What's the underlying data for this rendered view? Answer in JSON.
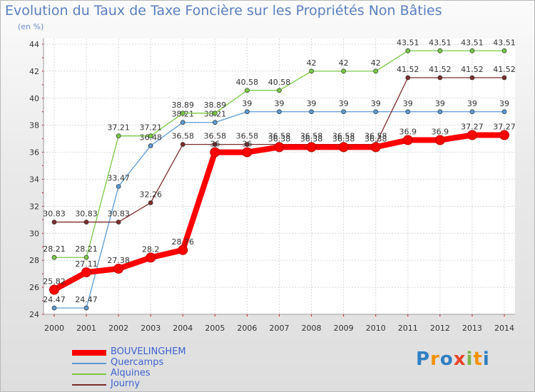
{
  "chart_data": {
    "type": "line",
    "title": "Evolution du Taux de Taxe Foncière sur les Propriétés Non Bâties",
    "ylabel": "(en %)",
    "xlabel": "",
    "ylim": [
      24,
      44
    ],
    "yticks": [
      "24",
      "26",
      "28",
      "30",
      "32",
      "34",
      "36",
      "38",
      "40",
      "42",
      "44"
    ],
    "categories": [
      "2000",
      "2001",
      "2002",
      "2003",
      "2004",
      "2005",
      "2006",
      "2007",
      "2008",
      "2009",
      "2010",
      "2011",
      "2012",
      "2013",
      "2014"
    ],
    "grid": true,
    "legend_position": "bottom-left",
    "series": [
      {
        "name": "BOUVELINGHEM",
        "color": "#ff0000",
        "emphasis": true,
        "values": [
          25.82,
          27.11,
          27.38,
          28.2,
          28.76,
          36,
          36,
          36.38,
          36.38,
          36.38,
          36.38,
          36.9,
          36.9,
          37.27,
          37.27
        ],
        "labels": [
          "25.82",
          "27.11",
          "27.38",
          "28.2",
          "28.76",
          "36",
          "36",
          "36.38",
          "36.38",
          "36.38",
          "36.38",
          "36.9",
          "36.9",
          "37.27",
          "37.27"
        ]
      },
      {
        "name": "Quercamps",
        "color": "#5b9bd5",
        "values": [
          24.47,
          24.47,
          33.47,
          36.48,
          38.21,
          38.21,
          39,
          39,
          39,
          39,
          39,
          39,
          39,
          39,
          39
        ],
        "labels": [
          "24.47",
          "24.47",
          "33.47",
          "36.48",
          "38.21",
          "38.21",
          "39",
          "39",
          "39",
          "39",
          "39",
          "39",
          "39",
          "39",
          "39"
        ]
      },
      {
        "name": "Alquines",
        "color": "#7ac943",
        "values": [
          28.21,
          28.21,
          37.21,
          37.21,
          38.89,
          38.89,
          40.58,
          40.58,
          42,
          42,
          42,
          43.51,
          43.51,
          43.51,
          43.51
        ],
        "labels": [
          "28.21",
          "28.21",
          "37.21",
          "37.21",
          "38.89",
          "38.89",
          "40.58",
          "40.58",
          "42",
          "42",
          "42",
          "43.51",
          "43.51",
          "43.51",
          "43.51"
        ]
      },
      {
        "name": "Journy",
        "color": "#7b2c2c",
        "values": [
          30.83,
          30.83,
          30.83,
          32.26,
          36.58,
          36.58,
          36.58,
          36.58,
          36.58,
          36.58,
          36.58,
          41.52,
          41.52,
          41.52,
          41.52
        ],
        "labels": [
          "30.83",
          "30.83",
          "30.83",
          "32.26",
          "36.58",
          "36.58",
          "36.58",
          "36.58",
          "36.58",
          "36.58",
          "36.58",
          "41.52",
          "41.52",
          "41.52",
          "41.52"
        ]
      }
    ]
  },
  "logo": {
    "letters": [
      "P",
      "r",
      "o",
      "x",
      "i",
      "t",
      "i"
    ],
    "colors": [
      "#2f7fc1",
      "#f39200",
      "#2f7fc1",
      "#e8432b",
      "#7ab648",
      "#f39200",
      "#2f7fc1"
    ]
  }
}
